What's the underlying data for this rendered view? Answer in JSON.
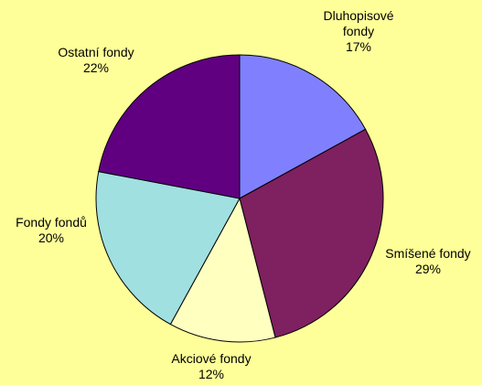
{
  "colors": {
    "background": "#FFFF99",
    "outline": "#000000"
  },
  "chart_data": {
    "type": "pie",
    "start_angle_deg": 0,
    "direction": "clockwise",
    "slices": [
      {
        "label_lines": [
          "Dluhopisové",
          "fondy"
        ],
        "value": 17,
        "percent": "17%",
        "color": "#8080FF"
      },
      {
        "label_lines": [
          "Smíšené fondy"
        ],
        "value": 29,
        "percent": "29%",
        "color": "#7F2060"
      },
      {
        "label_lines": [
          "Akciové fondy"
        ],
        "value": 12,
        "percent": "12%",
        "color": "#FFFFC0"
      },
      {
        "label_lines": [
          "Fondy fondů"
        ],
        "value": 20,
        "percent": "20%",
        "color": "#A0E0E0"
      },
      {
        "label_lines": [
          "Ostatní fondy"
        ],
        "value": 22,
        "percent": "22%",
        "color": "#600080"
      }
    ]
  }
}
